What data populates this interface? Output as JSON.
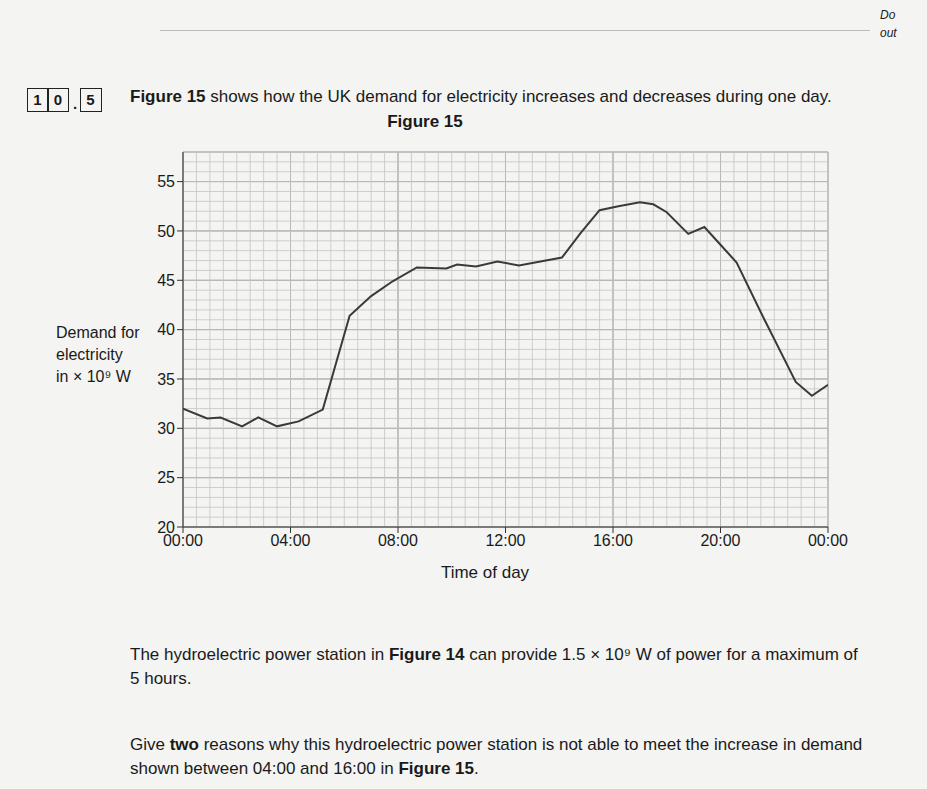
{
  "margin_note": [
    "Do",
    "out"
  ],
  "question": {
    "number_parts": [
      "1",
      "0",
      ".",
      "5"
    ],
    "intro": [
      {
        "text": "Figure 15",
        "bold": true
      },
      {
        "text": " shows how the UK demand for electricity increases and decreases during one day.",
        "bold": false
      }
    ],
    "figure_caption": "Figure 15",
    "paragraphs": [
      [
        {
          "text": "The hydroelectric power station in ",
          "bold": false
        },
        {
          "text": "Figure 14",
          "bold": true
        },
        {
          "text": " can provide 1.5 × 10⁹ W of power for a maximum of 5 hours.",
          "bold": false
        }
      ],
      [
        {
          "text": "Give ",
          "bold": false
        },
        {
          "text": "two",
          "bold": true
        },
        {
          "text": " reasons why this hydroelectric power station is not able to meet the increase in demand shown between 04:00 and 16:00 in ",
          "bold": false
        },
        {
          "text": "Figure 15",
          "bold": true
        },
        {
          "text": ".",
          "bold": false
        }
      ]
    ]
  },
  "chart_data": {
    "type": "line",
    "x_label": "Time of day",
    "y_label": [
      "Demand for",
      "electricity",
      "in × 10⁹ W"
    ],
    "x": [
      0,
      0.9,
      1.4,
      2.2,
      2.8,
      3.5,
      4.3,
      5.2,
      6.2,
      7.0,
      7.8,
      8.7,
      9.8,
      10.2,
      10.9,
      11.7,
      12.5,
      13.3,
      14.1,
      14.8,
      15.5,
      16.2,
      17.0,
      17.5,
      18.0,
      18.8,
      19.4,
      20.0,
      20.6,
      21.6,
      22.8,
      23.4,
      24.0
    ],
    "values": [
      32,
      31,
      31.1,
      30.2,
      31.1,
      30.2,
      30.7,
      31.9,
      41.4,
      43.4,
      44.9,
      46.3,
      46.2,
      46.6,
      46.4,
      46.9,
      46.5,
      46.9,
      47.3,
      49.8,
      52.1,
      52.5,
      52.9,
      52.7,
      51.9,
      49.7,
      50.4,
      48.6,
      46.8,
      41.2,
      34.7,
      33.3,
      34.4
    ],
    "color": "#3a3a3a",
    "xlim": [
      0,
      24
    ],
    "xticks": [
      {
        "value": 0,
        "label": "00:00"
      },
      {
        "value": 4,
        "label": "04:00"
      },
      {
        "value": 8,
        "label": "08:00"
      },
      {
        "value": 12,
        "label": "12:00"
      },
      {
        "value": 16,
        "label": "16:00"
      },
      {
        "value": 20,
        "label": "20:00"
      },
      {
        "value": 24,
        "label": "00:00"
      }
    ],
    "ylim": [
      20,
      58
    ],
    "yticks": [
      20,
      25,
      30,
      35,
      40,
      45,
      50,
      55
    ],
    "grid": true,
    "marker": "none",
    "line_style": "solid"
  }
}
